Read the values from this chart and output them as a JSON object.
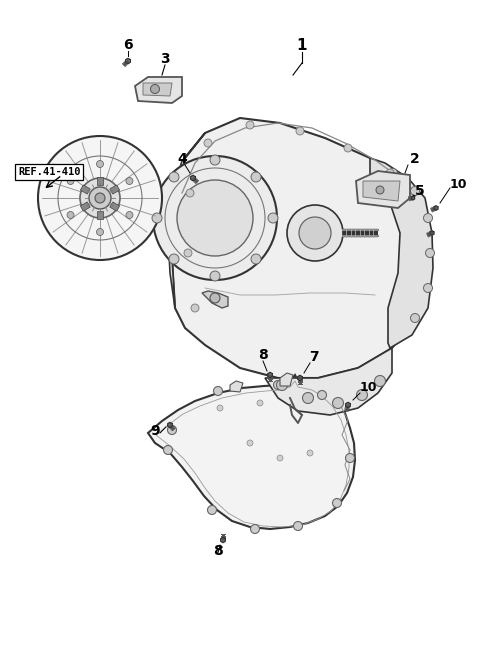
{
  "background_color": "#ffffff",
  "text_color": "#000000",
  "line_color": "#333333",
  "part_color": "#555555",
  "part_fill": "#f0f0f0",
  "part_fill2": "#e0e0e0",
  "dark_fill": "#999999"
}
